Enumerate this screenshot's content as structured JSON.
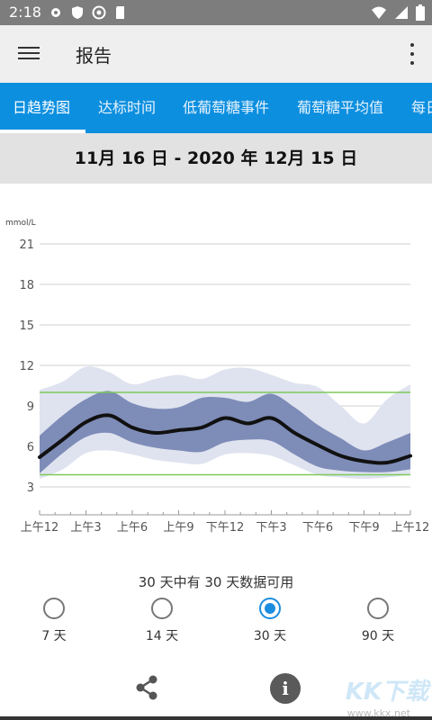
{
  "status_bar": {
    "time": "2:18",
    "left_icons": [
      "gear-icon",
      "shield-icon",
      "no-disturb-icon",
      "sd-card-icon"
    ],
    "right_icons": [
      "wifi-icon",
      "signal-icon",
      "battery-icon"
    ]
  },
  "app_bar": {
    "title": "报告",
    "menu_icon": "hamburger-menu-icon",
    "more_icon": "more-vert-icon"
  },
  "tabs": [
    {
      "label": "日趋势图",
      "active": true
    },
    {
      "label": "达标时间",
      "active": false
    },
    {
      "label": "低葡萄糖事件",
      "active": false
    },
    {
      "label": "葡萄糖平均值",
      "active": false
    },
    {
      "label": "每日",
      "active": false
    }
  ],
  "date_range": "11月 16 日 - 2020 年 12月 15 日",
  "chart_data": {
    "type": "line",
    "ylabel": "mmol/L",
    "ylim": [
      1,
      21
    ],
    "yticks": [
      3,
      6,
      9,
      12,
      15,
      18,
      21
    ],
    "x_tick_labels": [
      "上午12",
      "上午3",
      "上午6",
      "上午9",
      "下午12",
      "下午3",
      "下午6",
      "下午9",
      "上午12"
    ],
    "x_hours": [
      0,
      1.5,
      3,
      4.5,
      6,
      7.5,
      9,
      10.5,
      12,
      13.5,
      15,
      16.5,
      18,
      19.5,
      21,
      22.5,
      24
    ],
    "target_range": [
      3.9,
      10.0
    ],
    "series": [
      {
        "values": [
          5.2,
          6.5,
          7.8,
          8.3,
          7.4,
          7.0,
          7.2,
          7.4,
          8.1,
          7.7,
          8.1,
          7.0,
          6.1,
          5.3,
          4.9,
          4.8,
          5.3
        ]
      }
    ],
    "band_25_75": [
      {
        "low": 4.0,
        "high": 6.8
      },
      {
        "low": 5.5,
        "high": 8.3
      },
      {
        "low": 6.7,
        "high": 9.5
      },
      {
        "low": 7.0,
        "high": 10.1
      },
      {
        "low": 6.3,
        "high": 9.2
      },
      {
        "low": 5.9,
        "high": 8.8
      },
      {
        "low": 5.7,
        "high": 8.9
      },
      {
        "low": 5.6,
        "high": 9.6
      },
      {
        "low": 6.3,
        "high": 9.6
      },
      {
        "low": 6.5,
        "high": 9.3
      },
      {
        "low": 6.4,
        "high": 9.9
      },
      {
        "low": 5.4,
        "high": 8.9
      },
      {
        "low": 4.5,
        "high": 7.6
      },
      {
        "low": 4.2,
        "high": 6.6
      },
      {
        "low": 4.1,
        "high": 5.7
      },
      {
        "low": 4.1,
        "high": 6.3
      },
      {
        "low": 4.3,
        "high": 7.0
      }
    ],
    "band_10_90": [
      {
        "low": 3.6,
        "high": 10.2
      },
      {
        "low": 4.3,
        "high": 10.8
      },
      {
        "low": 5.5,
        "high": 11.9
      },
      {
        "low": 5.7,
        "high": 11.5
      },
      {
        "low": 5.4,
        "high": 10.6
      },
      {
        "low": 5.0,
        "high": 11.0
      },
      {
        "low": 4.8,
        "high": 11.3
      },
      {
        "low": 4.7,
        "high": 11.0
      },
      {
        "low": 5.4,
        "high": 11.7
      },
      {
        "low": 5.5,
        "high": 11.8
      },
      {
        "low": 5.3,
        "high": 11.3
      },
      {
        "low": 4.6,
        "high": 10.7
      },
      {
        "low": 3.9,
        "high": 10.4
      },
      {
        "low": 3.7,
        "high": 9.0
      },
      {
        "low": 3.6,
        "high": 7.7
      },
      {
        "low": 3.7,
        "high": 9.5
      },
      {
        "low": 3.9,
        "high": 10.6
      }
    ],
    "colors": {
      "line": "#111111",
      "band_inner": "#7e8cb8",
      "band_outer": "#dfe3ef",
      "target": "#7cc95a",
      "grid": "#cfcfcf"
    }
  },
  "availability_text": "30 天中有 30 天数据可用",
  "range_options": [
    {
      "label": "7 天",
      "selected": false
    },
    {
      "label": "14 天",
      "selected": false
    },
    {
      "label": "30 天",
      "selected": true
    },
    {
      "label": "90 天",
      "selected": false
    }
  ],
  "bottom_bar": {
    "share_icon": "share-icon",
    "info_icon": "info-icon",
    "info_glyph": "i"
  },
  "watermark": {
    "text": "KK下载",
    "sub": "www.kkx.net"
  },
  "accent_color": "#0d8fe0"
}
